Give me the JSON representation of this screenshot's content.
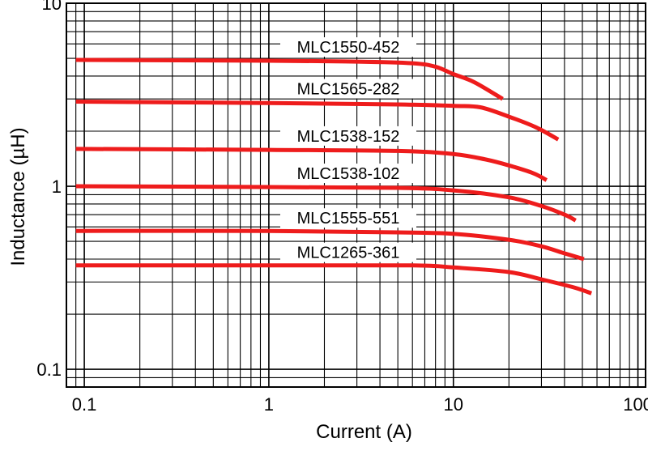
{
  "chart_data": {
    "type": "line",
    "title": "",
    "xlabel": "Current (A)",
    "ylabel": "Inductance (µH)",
    "xscale": "log",
    "yscale": "log",
    "xlim": [
      0.08,
      110
    ],
    "ylim": [
      0.08,
      10
    ],
    "grid": true,
    "legend": "inline labels above each curve",
    "line_color": "#ee1c1c",
    "x_ticks": [
      {
        "value": 0.1,
        "label": "0.1"
      },
      {
        "value": 1,
        "label": "1"
      },
      {
        "value": 10,
        "label": "10"
      },
      {
        "value": 100,
        "label": "100"
      }
    ],
    "y_ticks": [
      {
        "value": 0.1,
        "label": "0.1"
      },
      {
        "value": 1,
        "label": "1"
      },
      {
        "value": 10,
        "label": "10"
      }
    ],
    "series": [
      {
        "name": "MLC1550-452",
        "x": [
          0.09,
          1,
          3,
          6,
          8,
          10,
          13,
          18.5
        ],
        "y": [
          4.9,
          4.85,
          4.8,
          4.7,
          4.5,
          4.1,
          3.7,
          3.0
        ]
      },
      {
        "name": "MLC1565-282",
        "x": [
          0.09,
          1,
          5,
          10,
          14,
          20,
          28,
          37
        ],
        "y": [
          2.9,
          2.85,
          2.8,
          2.75,
          2.7,
          2.4,
          2.1,
          1.8
        ]
      },
      {
        "name": "MLC1538-152",
        "x": [
          0.09,
          1,
          5,
          10,
          15,
          20,
          27,
          32
        ],
        "y": [
          1.6,
          1.58,
          1.56,
          1.5,
          1.4,
          1.3,
          1.18,
          1.08
        ]
      },
      {
        "name": "MLC1538-102",
        "x": [
          0.09,
          1,
          5,
          10,
          20,
          30,
          40,
          46
        ],
        "y": [
          1.0,
          0.99,
          0.98,
          0.95,
          0.87,
          0.78,
          0.7,
          0.65
        ]
      },
      {
        "name": "MLC1555-551",
        "x": [
          0.09,
          1,
          5,
          10,
          20,
          30,
          40,
          51
        ],
        "y": [
          0.57,
          0.57,
          0.56,
          0.55,
          0.51,
          0.47,
          0.43,
          0.4
        ]
      },
      {
        "name": "MLC1265-361",
        "x": [
          0.09,
          1,
          6,
          10,
          20,
          30,
          45,
          56
        ],
        "y": [
          0.37,
          0.37,
          0.37,
          0.36,
          0.34,
          0.31,
          0.28,
          0.26
        ]
      }
    ]
  }
}
